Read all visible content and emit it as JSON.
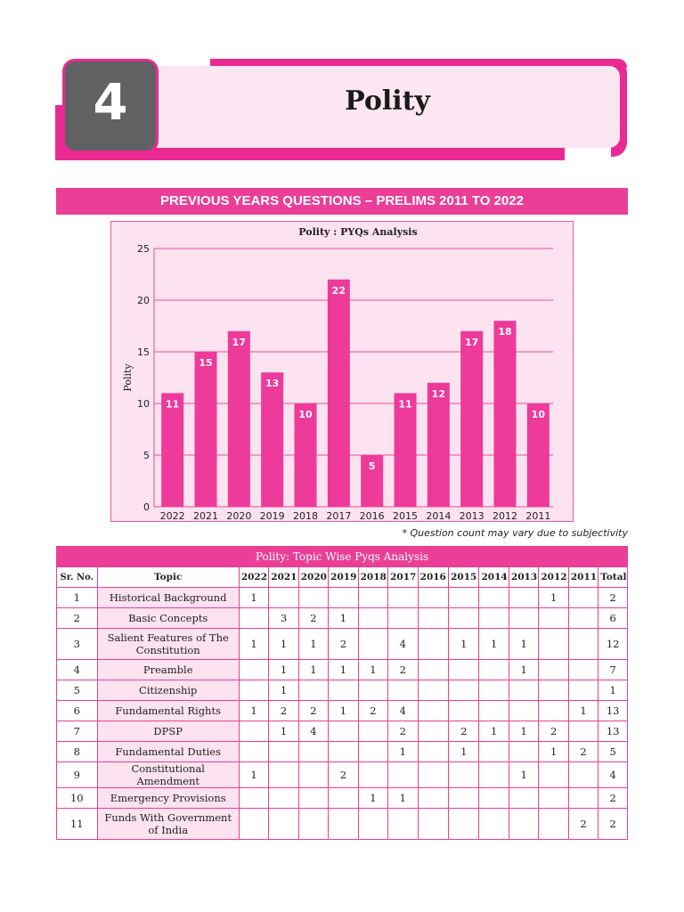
{
  "chapter": {
    "number": "4",
    "title": "Polity"
  },
  "section_banner": "PREVIOUS YEARS QUESTIONS – PRELIMS 2011 TO 2022",
  "chart_data": {
    "type": "bar",
    "title": "Polity : PYQs Analysis",
    "xlabel": "",
    "ylabel": "Polity",
    "categories": [
      "2022",
      "2021",
      "2020",
      "2019",
      "2018",
      "2017",
      "2016",
      "2015",
      "2014",
      "2013",
      "2012",
      "2011"
    ],
    "values": [
      11,
      15,
      17,
      13,
      10,
      22,
      5,
      11,
      12,
      17,
      18,
      10
    ],
    "ylim": [
      0,
      25
    ],
    "yticks": [
      0,
      5,
      10,
      15,
      20,
      25
    ],
    "grid": true,
    "bar_color": "#ee3a9a",
    "background": "#fce3ef"
  },
  "note": "* Question count may vary due to subjectivity",
  "table": {
    "caption": "Polity: Topic Wise Pyqs Analysis",
    "headers": [
      "Sr. No.",
      "Topic",
      "2022",
      "2021",
      "2020",
      "2019",
      "2018",
      "2017",
      "2016",
      "2015",
      "2014",
      "2013",
      "2012",
      "2011",
      "Total"
    ],
    "rows": [
      [
        "1",
        "Historical Background",
        "1",
        "",
        "",
        "",
        "",
        "",
        "",
        "",
        "",
        "",
        "1",
        "",
        "2"
      ],
      [
        "2",
        "Basic Concepts",
        "",
        "3",
        "2",
        "1",
        "",
        "",
        "",
        "",
        "",
        "",
        "",
        "",
        "6"
      ],
      [
        "3",
        "Salient Features of The Constitution",
        "1",
        "1",
        "1",
        "2",
        "",
        "4",
        "",
        "1",
        "1",
        "1",
        "",
        "",
        "12"
      ],
      [
        "4",
        "Preamble",
        "",
        "1",
        "1",
        "1",
        "1",
        "2",
        "",
        "",
        "",
        "1",
        "",
        "",
        "7"
      ],
      [
        "5",
        "Citizenship",
        "",
        "1",
        "",
        "",
        "",
        "",
        "",
        "",
        "",
        "",
        "",
        "",
        "1"
      ],
      [
        "6",
        "Fundamental Rights",
        "1",
        "2",
        "2",
        "1",
        "2",
        "4",
        "",
        "",
        "",
        "",
        "",
        "1",
        "13"
      ],
      [
        "7",
        "DPSP",
        "",
        "1",
        "4",
        "",
        "",
        "2",
        "",
        "2",
        "1",
        "1",
        "2",
        "",
        "13"
      ],
      [
        "8",
        "Fundamental Duties",
        "",
        "",
        "",
        "",
        "",
        "1",
        "",
        "1",
        "",
        "",
        "1",
        "2",
        "5"
      ],
      [
        "9",
        "Constitutional Amendment",
        "1",
        "",
        "",
        "2",
        "",
        "",
        "",
        "",
        "",
        "1",
        "",
        "",
        "4"
      ],
      [
        "10",
        "Emergency Provisions",
        "",
        "",
        "",
        "",
        "1",
        "1",
        "",
        "",
        "",
        "",
        "",
        "",
        "2"
      ],
      [
        "11",
        "Funds With Government of India",
        "",
        "",
        "",
        "",
        "",
        "",
        "",
        "",
        "",
        "",
        "",
        "2",
        "2"
      ]
    ]
  }
}
